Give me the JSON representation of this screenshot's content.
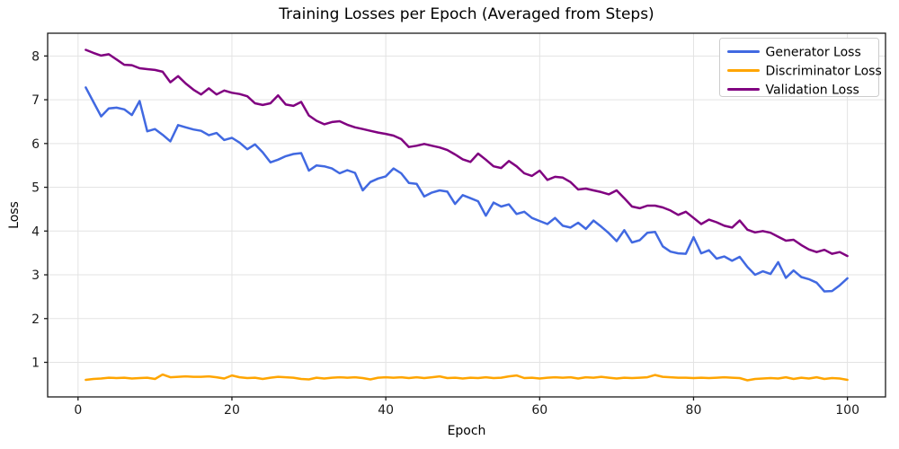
{
  "title": "Training Losses per Epoch (Averaged from Steps)",
  "chart_data": {
    "type": "line",
    "title": "Training Losses per Epoch (Averaged from Steps)",
    "xlabel": "Epoch",
    "ylabel": "Loss",
    "xlim": [
      -3.95,
      104.95
    ],
    "ylim": [
      0.21,
      8.52
    ],
    "xticks": [
      0,
      20,
      40,
      60,
      80,
      100
    ],
    "yticks": [
      1,
      2,
      3,
      4,
      5,
      6,
      7,
      8
    ],
    "grid": true,
    "grid_color": "#e3e3e3",
    "spine_color": "#1a1a1a",
    "legend_position": "upper right",
    "x": [
      1,
      2,
      3,
      4,
      5,
      6,
      7,
      8,
      9,
      10,
      11,
      12,
      13,
      14,
      15,
      16,
      17,
      18,
      19,
      20,
      21,
      22,
      23,
      24,
      25,
      26,
      27,
      28,
      29,
      30,
      31,
      32,
      33,
      34,
      35,
      36,
      37,
      38,
      39,
      40,
      41,
      42,
      43,
      44,
      45,
      46,
      47,
      48,
      49,
      50,
      51,
      52,
      53,
      54,
      55,
      56,
      57,
      58,
      59,
      60,
      61,
      62,
      63,
      64,
      65,
      66,
      67,
      68,
      69,
      70,
      71,
      72,
      73,
      74,
      75,
      76,
      77,
      78,
      79,
      80,
      81,
      82,
      83,
      84,
      85,
      86,
      87,
      88,
      89,
      90,
      91,
      92,
      93,
      94,
      95,
      96,
      97,
      98,
      99,
      100
    ],
    "series": [
      {
        "name": "Generator Loss",
        "color": "#4169e1",
        "values": [
          7.28,
          6.95,
          6.62,
          6.8,
          6.82,
          6.78,
          6.65,
          6.97,
          6.28,
          6.33,
          6.2,
          6.05,
          6.42,
          6.37,
          6.32,
          6.29,
          6.19,
          6.24,
          6.08,
          6.13,
          6.02,
          5.87,
          5.98,
          5.8,
          5.57,
          5.63,
          5.71,
          5.76,
          5.78,
          5.38,
          5.5,
          5.48,
          5.43,
          5.32,
          5.39,
          5.33,
          4.93,
          5.12,
          5.2,
          5.25,
          5.43,
          5.32,
          5.1,
          5.08,
          4.79,
          4.88,
          4.93,
          4.9,
          4.62,
          4.82,
          4.75,
          4.68,
          4.35,
          4.65,
          4.56,
          4.61,
          4.39,
          4.44,
          4.3,
          4.23,
          4.16,
          4.3,
          4.12,
          4.08,
          4.19,
          4.05,
          4.24,
          4.1,
          3.95,
          3.77,
          4.02,
          3.74,
          3.79,
          3.96,
          3.98,
          3.65,
          3.53,
          3.49,
          3.48,
          3.86,
          3.49,
          3.56,
          3.37,
          3.42,
          3.32,
          3.41,
          3.18,
          3.0,
          3.08,
          3.02,
          3.29,
          2.93,
          3.1,
          2.95,
          2.9,
          2.82,
          2.62,
          2.63,
          2.76,
          2.92
        ]
      },
      {
        "name": "Discriminator Loss",
        "color": "#ffa500",
        "values": [
          0.6,
          0.62,
          0.63,
          0.65,
          0.64,
          0.65,
          0.63,
          0.64,
          0.65,
          0.62,
          0.72,
          0.66,
          0.67,
          0.68,
          0.67,
          0.67,
          0.68,
          0.66,
          0.63,
          0.7,
          0.66,
          0.64,
          0.65,
          0.62,
          0.65,
          0.67,
          0.66,
          0.65,
          0.62,
          0.61,
          0.65,
          0.63,
          0.65,
          0.66,
          0.65,
          0.66,
          0.64,
          0.61,
          0.65,
          0.66,
          0.65,
          0.66,
          0.64,
          0.66,
          0.64,
          0.66,
          0.68,
          0.64,
          0.65,
          0.63,
          0.65,
          0.64,
          0.66,
          0.64,
          0.65,
          0.68,
          0.7,
          0.64,
          0.65,
          0.63,
          0.65,
          0.66,
          0.65,
          0.66,
          0.63,
          0.66,
          0.65,
          0.67,
          0.65,
          0.63,
          0.65,
          0.64,
          0.65,
          0.66,
          0.71,
          0.67,
          0.66,
          0.65,
          0.65,
          0.64,
          0.65,
          0.64,
          0.65,
          0.66,
          0.65,
          0.64,
          0.59,
          0.62,
          0.63,
          0.64,
          0.63,
          0.66,
          0.62,
          0.65,
          0.63,
          0.66,
          0.62,
          0.64,
          0.63,
          0.6
        ]
      },
      {
        "name": "Validation Loss",
        "color": "#800080",
        "values": [
          8.14,
          8.07,
          8.01,
          8.04,
          7.92,
          7.8,
          7.79,
          7.72,
          7.7,
          7.68,
          7.64,
          7.4,
          7.54,
          7.37,
          7.23,
          7.12,
          7.26,
          7.12,
          7.21,
          7.16,
          7.13,
          7.08,
          6.92,
          6.88,
          6.92,
          7.1,
          6.89,
          6.86,
          6.95,
          6.64,
          6.52,
          6.44,
          6.49,
          6.51,
          6.43,
          6.37,
          6.33,
          6.29,
          6.25,
          6.22,
          6.18,
          6.1,
          5.92,
          5.95,
          5.99,
          5.95,
          5.91,
          5.85,
          5.75,
          5.64,
          5.58,
          5.77,
          5.63,
          5.48,
          5.44,
          5.6,
          5.48,
          5.32,
          5.26,
          5.38,
          5.17,
          5.24,
          5.22,
          5.12,
          4.95,
          4.97,
          4.93,
          4.89,
          4.84,
          4.93,
          4.75,
          4.56,
          4.52,
          4.58,
          4.58,
          4.54,
          4.47,
          4.37,
          4.44,
          4.3,
          4.16,
          4.26,
          4.2,
          4.12,
          4.08,
          4.24,
          4.03,
          3.97,
          4.0,
          3.96,
          3.87,
          3.78,
          3.8,
          3.68,
          3.58,
          3.52,
          3.57,
          3.48,
          3.52,
          3.43
        ]
      }
    ]
  }
}
